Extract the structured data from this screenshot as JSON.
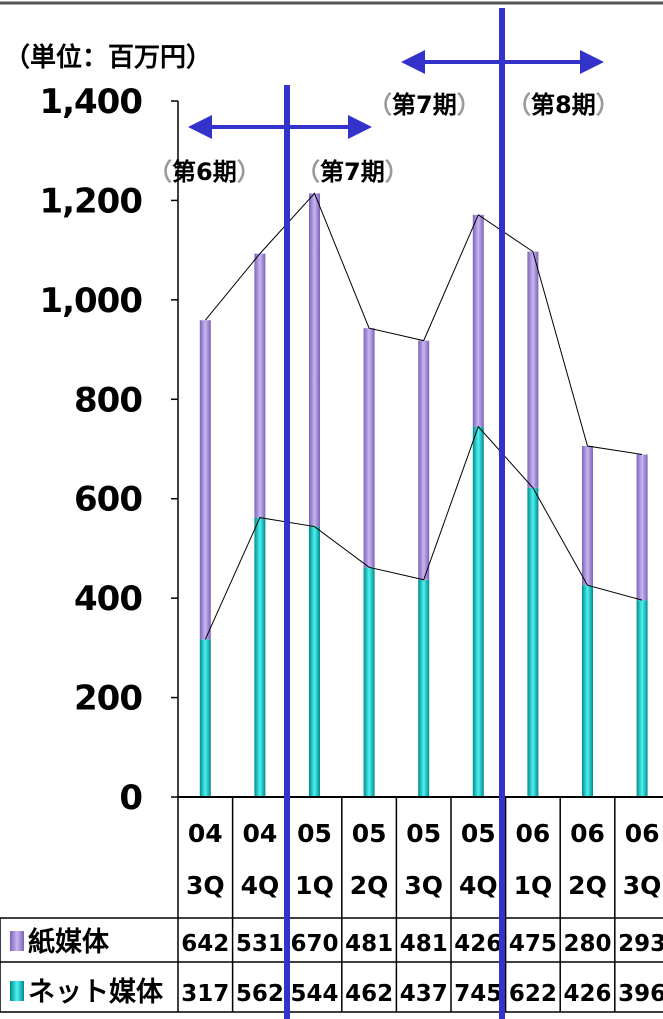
{
  "unit_label": "（単位：百万円）",
  "chart_data": {
    "type": "bar",
    "stacked": true,
    "categories": [
      {
        "year": "04",
        "quarter": "3Q"
      },
      {
        "year": "04",
        "quarter": "4Q"
      },
      {
        "year": "05",
        "quarter": "1Q"
      },
      {
        "year": "05",
        "quarter": "2Q"
      },
      {
        "year": "05",
        "quarter": "3Q"
      },
      {
        "year": "05",
        "quarter": "4Q"
      },
      {
        "year": "06",
        "quarter": "1Q"
      },
      {
        "year": "06",
        "quarter": "2Q"
      },
      {
        "year": "06",
        "quarter": "3Q"
      }
    ],
    "series": [
      {
        "name": "ネット媒体",
        "color": "#00c8c8",
        "values": [
          317,
          562,
          544,
          462,
          437,
          745,
          622,
          426,
          396
        ]
      },
      {
        "name": "紙媒体",
        "color": "#9b82d2",
        "values": [
          642,
          531,
          670,
          481,
          481,
          426,
          475,
          280,
          293
        ]
      }
    ],
    "ylim": [
      0,
      1400
    ],
    "yticks": [
      "0",
      "200",
      "400",
      "600",
      "800",
      "1,000",
      "1,200",
      "1,400"
    ],
    "grid": false,
    "legend": "data-table-below",
    "period_markers": [
      {
        "divider_after_index": 1,
        "left_label": "第6期",
        "right_label": "第7期"
      },
      {
        "divider_after_index": 5,
        "left_label": "第7期",
        "right_label": "第8期"
      }
    ],
    "marker_color": "#3333cc"
  }
}
